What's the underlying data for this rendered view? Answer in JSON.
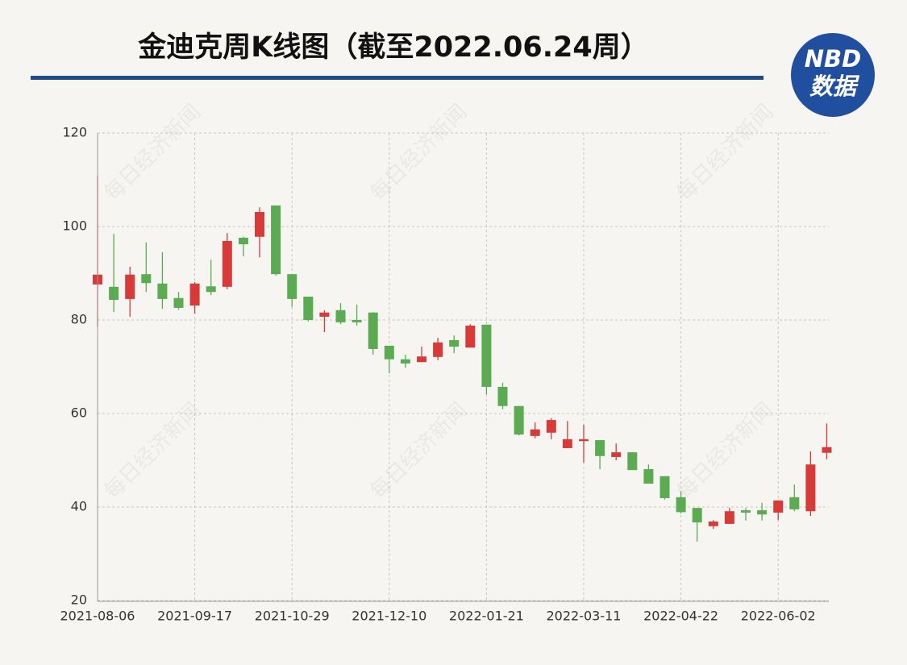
{
  "chart_data": {
    "type": "candlestick",
    "title": "金迪克周K线图（截至2022.06.24周）",
    "watermark": "每日经济新闻",
    "logo": {
      "top": "NBD",
      "bottom": "数据"
    },
    "categories": [
      "2021-08-06",
      null,
      null,
      null,
      null,
      null,
      "2021-09-17",
      null,
      null,
      null,
      null,
      null,
      "2021-10-29",
      null,
      null,
      null,
      null,
      null,
      "2021-12-10",
      null,
      null,
      null,
      null,
      null,
      "2022-01-21",
      null,
      null,
      null,
      null,
      null,
      "2022-03-11",
      null,
      null,
      null,
      null,
      null,
      "2022-04-22",
      null,
      null,
      null,
      null,
      null,
      "2022-06-02",
      null,
      null,
      null
    ],
    "open": [
      87.6,
      87.1,
      84.5,
      89.8,
      87.8,
      84.7,
      83.1,
      87.2,
      87.1,
      97.6,
      97.8,
      104.5,
      89.8,
      85.0,
      80.7,
      82.1,
      80.0,
      81.6,
      74.5,
      71.6,
      71.0,
      72.1,
      75.7,
      74.1,
      79.0,
      65.7,
      61.6,
      55.2,
      55.9,
      52.6,
      54.1,
      54.3,
      50.7,
      51.7,
      48.1,
      46.6,
      42.1,
      39.8,
      35.9,
      36.4,
      39.3,
      39.3,
      38.8,
      42.1,
      39.1,
      51.6
    ],
    "high": [
      110.9,
      98.4,
      91.4,
      96.6,
      94.5,
      86.0,
      88.1,
      92.9,
      98.6,
      97.8,
      104.1,
      104.5,
      89.8,
      85.0,
      82.1,
      83.6,
      83.3,
      81.7,
      74.5,
      72.6,
      74.3,
      76.2,
      76.7,
      79.1,
      79.0,
      66.6,
      61.6,
      58.1,
      59.0,
      58.4,
      57.6,
      54.3,
      53.6,
      51.7,
      49.1,
      46.6,
      43.4,
      39.8,
      37.2,
      39.8,
      39.8,
      40.9,
      41.4,
      44.8,
      51.9,
      57.9
    ],
    "low": [
      78.6,
      81.7,
      80.7,
      86.0,
      82.4,
      82.2,
      81.4,
      85.3,
      86.6,
      93.6,
      93.4,
      89.5,
      82.8,
      79.7,
      77.4,
      79.1,
      78.8,
      72.6,
      68.6,
      69.8,
      71.0,
      71.4,
      72.9,
      74.1,
      64.1,
      60.9,
      55.3,
      54.7,
      54.5,
      52.6,
      49.5,
      48.1,
      50.0,
      47.9,
      45.0,
      41.6,
      38.6,
      32.6,
      35.3,
      36.4,
      37.1,
      37.1,
      37.2,
      39.1,
      38.1,
      50.2
    ],
    "close": [
      89.7,
      84.3,
      89.7,
      87.9,
      84.5,
      82.6,
      87.8,
      86.0,
      96.9,
      96.2,
      103.1,
      89.8,
      84.5,
      80.0,
      81.6,
      79.5,
      79.5,
      73.8,
      71.6,
      70.7,
      72.2,
      75.2,
      74.3,
      78.8,
      65.7,
      61.6,
      55.5,
      56.6,
      58.6,
      54.5,
      54.5,
      50.9,
      51.7,
      47.9,
      45.0,
      41.9,
      38.9,
      36.7,
      36.9,
      39.1,
      38.8,
      38.4,
      41.4,
      39.5,
      49.1,
      52.8
    ],
    "up_color": "#d83a38",
    "down_color": "#5aab52",
    "ylim": [
      20,
      120
    ],
    "yticks": [
      20,
      40,
      60,
      80,
      100,
      120
    ],
    "grid": true
  }
}
